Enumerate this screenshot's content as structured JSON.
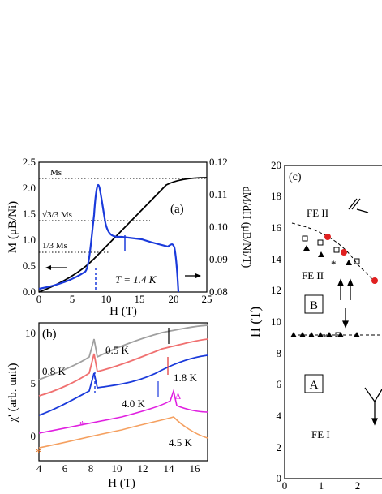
{
  "panel_a": {
    "label": "(a)",
    "ylabel_left": "M (μB/Ni)",
    "ylabel_right": "dM/dH (μB/Ni/T)",
    "xlabel": "H (T)",
    "temperature": "T = 1.4 K",
    "annotations": [
      "Ms",
      "√3/3 Ms",
      "1/3 Ms"
    ],
    "xticks": [
      "0",
      "5",
      "10",
      "15",
      "20",
      "25"
    ],
    "yticks_left": [
      "0.0",
      "0.5",
      "1.0",
      "1.5",
      "2.0",
      "2.5"
    ],
    "yticks_right": [
      "0.08",
      "0.09",
      "0.10",
      "0.11",
      "0.12"
    ]
  },
  "panel_b": {
    "label": "(b)",
    "ylabel": "χ' (arb. unit)",
    "xlabel": "H (T)",
    "curve_labels": [
      "0.5 K",
      "0.8 K",
      "1.8 K",
      "4.0 K",
      "4.5 K"
    ],
    "xticks": [
      "4",
      "6",
      "8",
      "10",
      "12",
      "14",
      "16"
    ],
    "yticks": [
      "0",
      "5",
      "10"
    ]
  },
  "panel_c": {
    "label": "(c)",
    "ylabel": "H (T)",
    "regions": [
      "FE II",
      "FE II",
      "B",
      "A",
      "FE I"
    ],
    "yticks": [
      "0",
      "2",
      "4",
      "6",
      "8",
      "10",
      "12",
      "14",
      "16",
      "18",
      "20"
    ],
    "xticks": [
      "0",
      "1",
      "2"
    ]
  },
  "chart_data": [
    {
      "type": "line",
      "series": [
        {
          "name": "M",
          "x": [
            0,
            2,
            4,
            6,
            8,
            10,
            12,
            14,
            16,
            18,
            20,
            22,
            25
          ],
          "y": [
            0,
            0.12,
            0.28,
            0.5,
            0.78,
            1.05,
            1.33,
            1.6,
            1.85,
            2.08,
            2.2,
            2.21,
            2.21
          ]
        },
        {
          "name": "dM/dH",
          "x": [
            0,
            2,
            4,
            6,
            7,
            7.5,
            8,
            8.3,
            8.6,
            9,
            10,
            11,
            12,
            14,
            16,
            18,
            19,
            19.5,
            20,
            20.3
          ],
          "y": [
            0.08,
            0.0815,
            0.0835,
            0.0865,
            0.093,
            0.1,
            0.11,
            0.112,
            0.108,
            0.101,
            0.096,
            0.0955,
            0.0955,
            0.094,
            0.093,
            0.0915,
            0.0915,
            0.0925,
            0.091,
            0.08
          ]
        }
      ],
      "xlim": [
        0,
        25
      ],
      "ylim": [
        0,
        2.5
      ],
      "y2lim": [
        0.08,
        0.12
      ]
    },
    {
      "type": "line",
      "series": [
        {
          "name": "0.5 K",
          "x": [
            4,
            6,
            7,
            8,
            8.3,
            8.6,
            10,
            12,
            14,
            16,
            17
          ],
          "y": [
            3.4,
            4.8,
            6.0,
            7.5,
            8.6,
            7.5,
            8.2,
            8.8,
            9.4,
            9.8,
            10.0
          ]
        },
        {
          "name": "0.8 K",
          "x": [
            4,
            6,
            7,
            8,
            8.3,
            8.6,
            10,
            12,
            14,
            16,
            17
          ],
          "y": [
            2.2,
            3.6,
            5.0,
            6.5,
            7.6,
            6.3,
            6.8,
            7.5,
            8.4,
            8.9,
            9.2
          ]
        },
        {
          "name": "1.8 K",
          "x": [
            4,
            6,
            7,
            8,
            8.3,
            8.6,
            10,
            12,
            14,
            16,
            17
          ],
          "y": [
            0.8,
            2.2,
            3.5,
            4.8,
            5.8,
            4.6,
            5.0,
            5.6,
            7.0,
            7.8,
            8.2
          ]
        },
        {
          "name": "4.0 K",
          "x": [
            4,
            6,
            8,
            10,
            12,
            14,
            14.6,
            15,
            16,
            17
          ],
          "y": [
            -0.6,
            0.0,
            0.6,
            1.2,
            2.0,
            3.0,
            3.8,
            1.4,
            0.8,
            0.6
          ]
        },
        {
          "name": "4.5 K",
          "x": [
            4,
            6,
            8,
            10,
            12,
            14,
            16,
            17
          ],
          "y": [
            -1.6,
            -1.2,
            -0.6,
            0.0,
            0.8,
            1.2,
            0.2,
            -0.2
          ]
        }
      ],
      "xlim": [
        4,
        17
      ],
      "ylim": [
        -2,
        11
      ]
    },
    {
      "type": "scatter",
      "series": [
        {
          "name": "filled circles",
          "x": [
            1.2,
            1.8,
            2.5
          ],
          "y": [
            15.0,
            14.0,
            12.0
          ]
        },
        {
          "name": "open squares",
          "x": [
            0.5,
            1.0,
            1.5,
            2.0,
            0.5,
            1.0,
            1.5,
            2.0
          ],
          "y": [
            15.3,
            14.9,
            14.3,
            13.5,
            8.3,
            8.3,
            8.3,
            8.3
          ]
        },
        {
          "name": "filled triangles",
          "x": [
            0.5,
            1.0,
            2.0,
            0.1,
            0.3,
            0.6,
            0.9,
            1.2,
            1.6,
            2.0
          ],
          "y": [
            14.2,
            13.6,
            13.0,
            8.2,
            8.2,
            8.2,
            8.2,
            8.2,
            8.2,
            8.2
          ]
        }
      ],
      "xlim": [
        0,
        2.9
      ],
      "ylim": [
        0,
        20
      ]
    }
  ]
}
